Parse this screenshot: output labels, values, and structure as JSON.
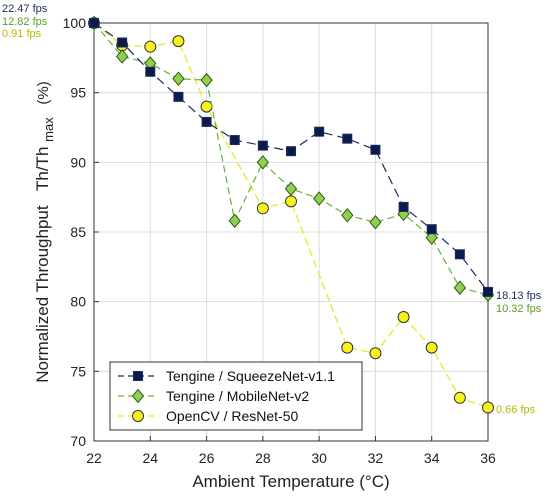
{
  "chart_data": {
    "type": "line",
    "xlabel": "Ambient Temperature (°C)",
    "ylabel": {
      "main": "Normalized Throughput",
      "quantity_base": "Th/Th",
      "quantity_sub": "max",
      "unit": "(%)"
    },
    "xlim": [
      22,
      36
    ],
    "ylim": [
      70,
      100
    ],
    "xticks": [
      22,
      24,
      26,
      28,
      30,
      32,
      34,
      36
    ],
    "yticks": [
      70,
      75,
      80,
      85,
      90,
      95,
      100
    ],
    "grid": true,
    "legend_position": "bottom-left",
    "series": [
      {
        "name": "Tengine / SqueezeNet-v1.1",
        "color": "#1b2a5e",
        "fill": "#0d1b4a",
        "marker": "square",
        "x": [
          22,
          23,
          24,
          25,
          26,
          27,
          28,
          29,
          30,
          31,
          32,
          33,
          34,
          35,
          36
        ],
        "y": [
          100,
          98.6,
          96.5,
          94.7,
          92.9,
          91.6,
          91.2,
          90.8,
          92.2,
          91.7,
          90.9,
          86.8,
          85.2,
          83.4,
          80.7
        ],
        "start_label": "22.47 fps",
        "end_label": "18.13 fps"
      },
      {
        "name": "Tengine / MobileNet-v2",
        "color": "#66b23a",
        "fill": "#8fd14f",
        "marker": "diamond",
        "x": [
          22,
          23,
          24,
          25,
          26,
          27,
          28,
          29,
          30,
          31,
          32,
          33,
          34,
          35,
          36
        ],
        "y": [
          100,
          97.6,
          97.1,
          96.0,
          95.9,
          85.8,
          90.0,
          88.1,
          87.4,
          86.2,
          85.7,
          86.3,
          84.6,
          81.0,
          80.5
        ],
        "start_label": "12.82 fps",
        "end_label": "10.32 fps"
      },
      {
        "name": "OpenCV / ResNet-50",
        "color": "#e6e61a",
        "fill": "#f7f21c",
        "marker": "circle",
        "x": [
          22,
          23,
          24,
          25,
          26,
          28,
          29,
          31,
          32,
          33,
          34,
          35,
          36
        ],
        "y": [
          100,
          98.4,
          98.3,
          98.7,
          94.0,
          86.7,
          87.2,
          76.7,
          76.3,
          78.9,
          76.7,
          73.1,
          72.4
        ],
        "start_label": "0.91 fps",
        "end_label": "0.66 fps"
      }
    ]
  },
  "colors": {
    "squeezenet_text": "#1b2a5e",
    "mobilenet_text": "#5a9e2a",
    "resnet_text": "#b8b800"
  }
}
